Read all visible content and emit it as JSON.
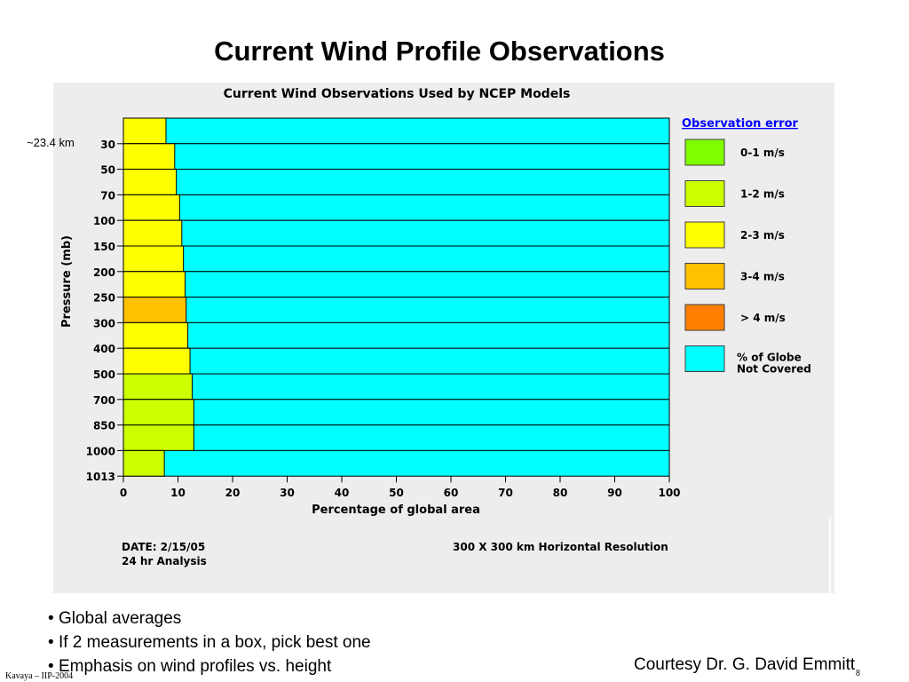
{
  "slide": {
    "title": "Current Wind Profile Observations",
    "altitude_note": "~23.4 km",
    "bullets": [
      "Global averages",
      "If 2 measurements in a box, pick best one",
      "Emphasis on wind profiles vs. height"
    ],
    "courtesy": "Courtesy Dr. G. David Emmitt",
    "footer": "Kavaya – IIP-2004",
    "page_number": "8"
  },
  "chart_data": {
    "type": "bar",
    "orientation": "horizontal-stacked",
    "title": "Current Wind Observations Used by NCEP Models",
    "xlabel": "Percentage of global area",
    "ylabel": "Pressure (mb)",
    "xlim": [
      0,
      100
    ],
    "xticks": [
      "0",
      "10",
      "20",
      "30",
      "40",
      "50",
      "60",
      "70",
      "80",
      "90",
      "100"
    ],
    "categories": [
      "",
      "30",
      "50",
      "70",
      "100",
      "150",
      "200",
      "250",
      "300",
      "400",
      "500",
      "700",
      "850",
      "1000",
      "1013"
    ],
    "bars": [
      {
        "covered": 7.8,
        "error_class": "2-3"
      },
      {
        "covered": 9.4,
        "error_class": "2-3"
      },
      {
        "covered": 9.7,
        "error_class": "2-3"
      },
      {
        "covered": 10.3,
        "error_class": "2-3"
      },
      {
        "covered": 10.7,
        "error_class": "2-3"
      },
      {
        "covered": 11.0,
        "error_class": "2-3"
      },
      {
        "covered": 11.3,
        "error_class": "2-3"
      },
      {
        "covered": 11.5,
        "error_class": "3-4"
      },
      {
        "covered": 11.8,
        "error_class": "2-3"
      },
      {
        "covered": 12.2,
        "error_class": "2-3"
      },
      {
        "covered": 12.6,
        "error_class": "1-2"
      },
      {
        "covered": 12.9,
        "error_class": "1-2"
      },
      {
        "covered": 12.9,
        "error_class": "1-2"
      },
      {
        "covered": 7.5,
        "error_class": "1-2"
      }
    ],
    "legend": {
      "title": "Observation error",
      "placement": "right",
      "items": [
        {
          "key": "0-1",
          "label": "0-1 m/s",
          "color": "#80ff00"
        },
        {
          "key": "1-2",
          "label": "1-2 m/s",
          "color": "#ccff00"
        },
        {
          "key": "2-3",
          "label": "2-3 m/s",
          "color": "#ffff00"
        },
        {
          "key": "3-4",
          "label": "3-4 m/s",
          "color": "#ffc000"
        },
        {
          "key": "gt4",
          "label": "> 4 m/s",
          "color": "#ff8000"
        },
        {
          "key": "uncovered",
          "label1": "%  of  Globe",
          "label2": "Not Covered",
          "color": "#00ffff"
        }
      ]
    },
    "notes": {
      "date": "DATE: 2/15/05",
      "analysis": "24 hr Analysis",
      "resolution": "300 X 300 km Horizontal Resolution"
    },
    "colors": {
      "uncovered": "#00ffff",
      "legend_title": "#0000ff",
      "panel_bg": "#ededed"
    }
  }
}
